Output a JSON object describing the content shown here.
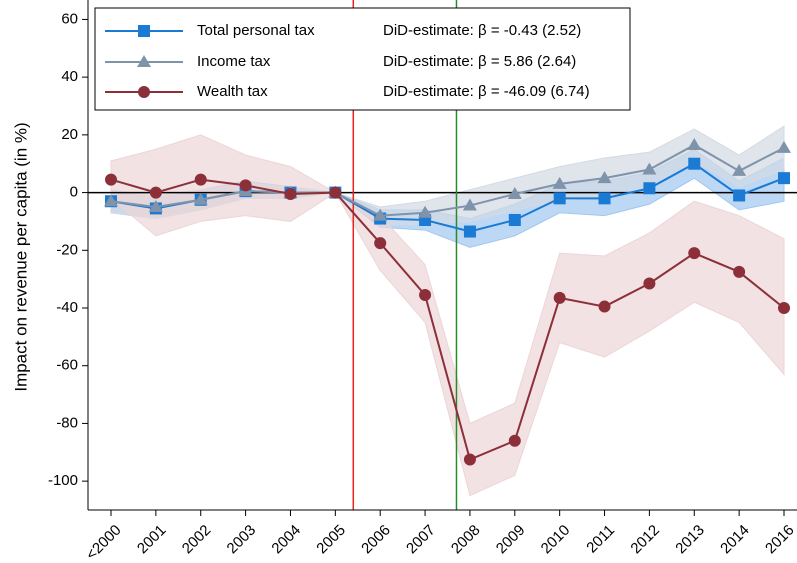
{
  "chart_data": {
    "type": "line",
    "y_label": "Impact on revenue per capita (in %)",
    "categories": [
      "<2000",
      "2001",
      "2002",
      "2003",
      "2004",
      "2005",
      "2006",
      "2007",
      "2008",
      "2009",
      "2010",
      "2011",
      "2012",
      "2013",
      "2014",
      "2016"
    ],
    "ylim": [
      -110,
      65
    ],
    "yticks": [
      60,
      40,
      20,
      0,
      -20,
      -40,
      -60,
      -80,
      -100
    ],
    "series": [
      {
        "name": "Total personal tax",
        "annotation": "DiD-estimate: β = -0.43 (2.52)",
        "color": "#1a7ad4",
        "band_color": "#9fc8f0",
        "marker": "square",
        "values": [
          -3,
          -5.5,
          -2.5,
          0.5,
          0,
          0,
          -9,
          -9.5,
          -13.5,
          -9.5,
          -2,
          -2,
          1.5,
          10,
          -1,
          5
        ],
        "lower": [
          -7,
          -9,
          -6,
          -2,
          -2,
          0,
          -12,
          -13,
          -19,
          -15,
          -7,
          -8,
          -4,
          5,
          -6,
          -3
        ],
        "upper": [
          1,
          -2,
          1,
          4,
          2,
          0,
          -6,
          -6,
          -9,
          -4,
          3,
          4,
          7,
          15,
          4,
          12
        ]
      },
      {
        "name": "Income tax",
        "annotation": "DiD-estimate: β = 5.86 (2.64)",
        "color": "#7f93ab",
        "band_color": "#d3dae3",
        "marker": "triangle",
        "values": [
          -3,
          -5,
          -2.5,
          0.5,
          0,
          0,
          -8,
          -7,
          -4.5,
          -0.5,
          3,
          5,
          8,
          16.5,
          7.5,
          15.5
        ],
        "lower": [
          -7,
          -9,
          -6,
          -2,
          -2,
          0,
          -11,
          -11,
          -10,
          -6,
          -3,
          -1,
          2,
          11,
          2,
          8
        ],
        "upper": [
          1,
          -1,
          1,
          3,
          2,
          0,
          -5,
          -3,
          1,
          5,
          9,
          12,
          14,
          22,
          13,
          23
        ]
      },
      {
        "name": "Wealth tax",
        "annotation": "DiD-estimate: β = -46.09 (6.74)",
        "color": "#8c2f39",
        "band_color": "#ecd5d7",
        "marker": "circle",
        "values": [
          4.5,
          0,
          4.5,
          2.5,
          -0.5,
          0,
          -17.5,
          -35.5,
          -92.5,
          -86,
          -36.5,
          -39.5,
          -31.5,
          -21,
          -27.5,
          -40
        ],
        "lower": [
          -2,
          -15,
          -10,
          -8,
          -10,
          0,
          -27,
          -45,
          -105,
          -98,
          -52,
          -57,
          -48,
          -38,
          -45,
          -63
        ],
        "upper": [
          11,
          15,
          20,
          13,
          9,
          0,
          -8,
          -25,
          -80,
          -73,
          -21,
          -22,
          -14,
          -3,
          -8,
          -16
        ]
      }
    ]
  }
}
